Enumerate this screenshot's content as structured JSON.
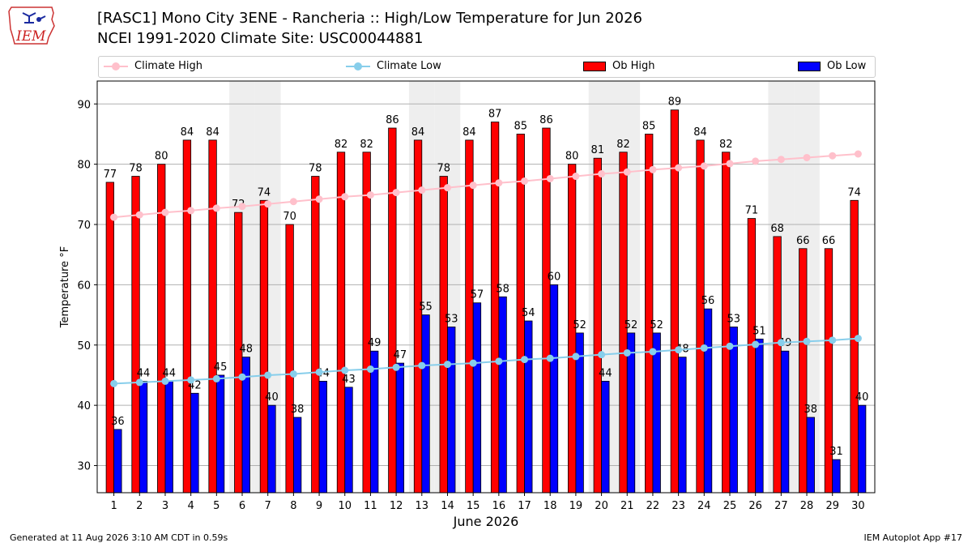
{
  "header": {
    "title_line1": "[RASC1] Mono City 3ENE - Rancheria :: High/Low Temperature for Jun 2026",
    "title_line2": "NCEI 1991-2020 Climate Site: USC00044881"
  },
  "logo": {
    "text": "IEM"
  },
  "footer": {
    "left": "Generated at 11 Aug 2026 3:10 AM CDT in 0.59s",
    "right": "IEM Autoplot App #17"
  },
  "legend": {
    "climate_high": "Climate High",
    "climate_low": "Climate Low",
    "ob_high": "Ob High",
    "ob_low": "Ob Low"
  },
  "colors": {
    "ob_high": "#ff0000",
    "ob_low": "#0000ff",
    "climate_high": "#ffc0cb",
    "climate_low": "#87ceeb",
    "weekend_shade": "#eeeeee",
    "grid": "#b0b0b0"
  },
  "chart_data": {
    "type": "bar",
    "xlabel": "June 2026",
    "ylabel": "Temperature °F",
    "ylim": [
      25.5,
      93.8
    ],
    "yticks": [
      30,
      40,
      50,
      60,
      70,
      80,
      90
    ],
    "grid": "horizontal",
    "legend_position": "top",
    "categories": [
      1,
      2,
      3,
      4,
      5,
      6,
      7,
      8,
      9,
      10,
      11,
      12,
      13,
      14,
      15,
      16,
      17,
      18,
      19,
      20,
      21,
      22,
      23,
      24,
      25,
      26,
      27,
      28,
      29,
      30
    ],
    "shaded_days": [
      6,
      7,
      13,
      14,
      20,
      21,
      27,
      28
    ],
    "series": [
      {
        "name": "Ob High",
        "kind": "bar",
        "values": [
          77,
          78,
          80,
          84,
          84,
          72,
          74,
          70,
          78,
          82,
          82,
          86,
          84,
          78,
          84,
          87,
          85,
          86,
          80,
          81,
          82,
          85,
          89,
          84,
          82,
          71,
          68,
          66,
          66,
          74
        ],
        "labels": [
          77,
          78,
          80,
          84,
          84,
          72,
          74,
          70,
          78,
          82,
          82,
          86,
          84,
          78,
          84,
          87,
          85,
          86,
          80,
          81,
          82,
          85,
          89,
          84,
          82,
          71,
          68,
          66,
          66,
          74
        ]
      },
      {
        "name": "Ob Low",
        "kind": "bar",
        "values": [
          36,
          44,
          44,
          42,
          45,
          48,
          40,
          38,
          44,
          43,
          49,
          47,
          55,
          53,
          57,
          58,
          54,
          60,
          52,
          44,
          52,
          52,
          48,
          56,
          53,
          51,
          49,
          38,
          31,
          40
        ],
        "labels": [
          36,
          44,
          44,
          42,
          45,
          48,
          40,
          38,
          44,
          43,
          49,
          47,
          55,
          53,
          57,
          58,
          54,
          60,
          52,
          44,
          52,
          52,
          48,
          56,
          53,
          51,
          49,
          38,
          31,
          40
        ]
      },
      {
        "name": "Climate High",
        "kind": "line",
        "values": [
          71.2,
          71.6,
          72.0,
          72.3,
          72.7,
          73.0,
          73.4,
          73.8,
          74.2,
          74.6,
          74.9,
          75.3,
          75.7,
          76.1,
          76.5,
          76.9,
          77.2,
          77.6,
          78.0,
          78.4,
          78.7,
          79.1,
          79.4,
          79.7,
          80.1,
          80.5,
          80.8,
          81.1,
          81.4,
          81.7
        ]
      },
      {
        "name": "Climate Low",
        "kind": "line",
        "values": [
          43.6,
          43.8,
          44.0,
          44.2,
          44.4,
          44.7,
          45.0,
          45.2,
          45.5,
          45.8,
          46.0,
          46.3,
          46.6,
          46.8,
          47.0,
          47.3,
          47.6,
          47.8,
          48.1,
          48.4,
          48.7,
          48.9,
          49.2,
          49.5,
          49.8,
          50.1,
          50.4,
          50.6,
          50.8,
          51.1
        ]
      }
    ]
  }
}
